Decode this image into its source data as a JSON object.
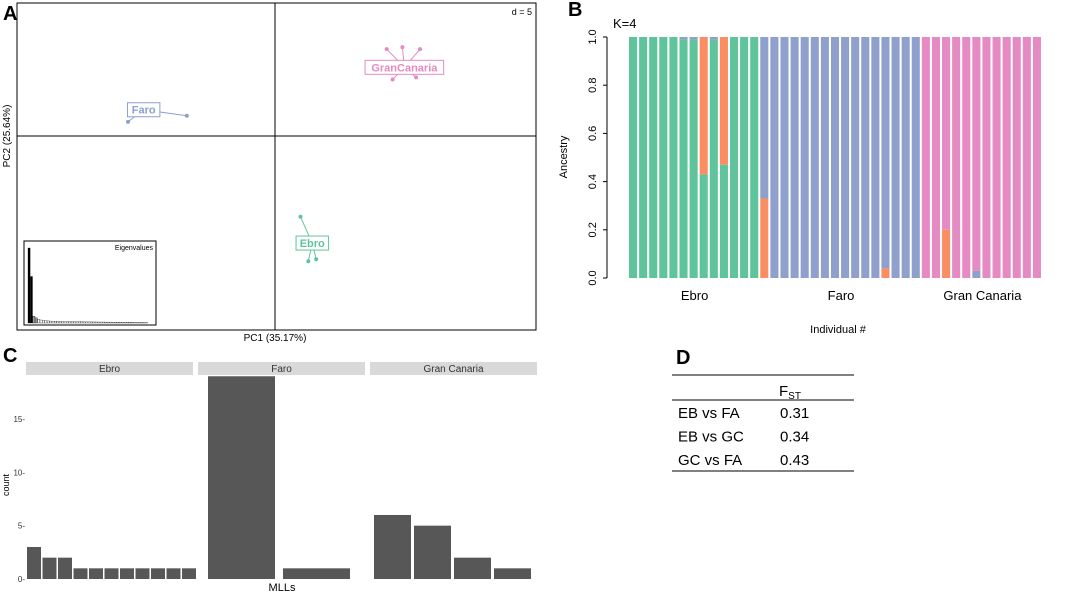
{
  "panels": {
    "a": "A",
    "b": "B",
    "c": "C",
    "d": "D"
  },
  "colors": {
    "ebro": "#5fc49b",
    "faro": "#8ea0cb",
    "gran_canaria": "#e58ac2",
    "orange": "#fb8d62",
    "dark_bar": "#575757",
    "strip": "#d9d9d9"
  },
  "chart_data": [
    {
      "id": "pca",
      "type": "scatter",
      "title": "",
      "xlabel": "PC1 (35.17%)",
      "ylabel": "PC2 (25.64%)",
      "scale_label": "d = 5",
      "grid": true,
      "groups": [
        {
          "name": "Faro",
          "color": "#8ea0cb",
          "centroid": [
            -6.7,
            1.3
          ],
          "points": [
            [
              -6.7,
              1.3
            ],
            [
              -4.5,
              1.0
            ],
            [
              -7.5,
              0.7
            ]
          ]
        },
        {
          "name": "GranCanaria",
          "color": "#e58ac2",
          "centroid": [
            6.6,
            3.4
          ],
          "points": [
            [
              6.6,
              3.4
            ],
            [
              5.7,
              4.3
            ],
            [
              7.4,
              4.3
            ],
            [
              6.0,
              2.8
            ],
            [
              7.2,
              2.9
            ],
            [
              6.5,
              4.4
            ]
          ]
        },
        {
          "name": "Ebro",
          "color": "#5fc49b",
          "centroid": [
            1.9,
            -5.3
          ],
          "points": [
            [
              1.9,
              -5.3
            ],
            [
              1.3,
              -4.0
            ],
            [
              2.1,
              -6.1
            ],
            [
              1.7,
              -6.2
            ]
          ]
        }
      ],
      "inset": {
        "title": "Eigenvalues",
        "values": [
          100,
          62,
          9,
          7,
          5,
          4,
          3.5,
          3,
          2.8,
          2.6,
          2.4,
          2.3,
          2.2,
          2.1,
          2.0,
          1.9,
          1.9,
          1.8,
          1.8,
          1.7,
          1.7,
          1.6,
          1.6,
          1.5,
          1.5,
          1.5,
          1.4,
          1.4,
          1.4,
          1.3,
          1.3,
          1.3,
          1.2,
          1.2,
          1.2,
          1.1,
          1.1,
          1.1,
          1.0,
          1.0,
          1.0,
          0.9,
          0.9,
          0.9,
          0.8,
          0.8,
          0.8,
          0.7,
          0.7,
          0.6
        ]
      }
    },
    {
      "id": "admixture",
      "type": "bar",
      "stacked": true,
      "annotation": "K=4",
      "xlabel": "Individual #",
      "ylabel": "Ancestry",
      "ylim": [
        0,
        1
      ],
      "yticks": [
        "0.0",
        "0.2",
        "0.4",
        "0.6",
        "0.8",
        "1.0"
      ],
      "component_colors": [
        "#5fc49b",
        "#fb8d62",
        "#8ea0cb",
        "#e58ac2"
      ],
      "groups": [
        {
          "label": "Ebro",
          "start": 0,
          "count": 13
        },
        {
          "label": "Faro",
          "start": 13,
          "count": 16
        },
        {
          "label": "Gran Canaria",
          "start": 29,
          "count": 12
        }
      ],
      "individuals": [
        [
          1,
          0,
          0,
          0
        ],
        [
          1,
          0,
          0,
          0
        ],
        [
          1,
          0,
          0,
          0
        ],
        [
          1,
          0,
          0,
          0
        ],
        [
          1,
          0,
          0,
          0
        ],
        [
          0.99,
          0,
          0.01,
          0
        ],
        [
          0.99,
          0,
          0.01,
          0
        ],
        [
          0.43,
          0.57,
          0,
          0
        ],
        [
          0.99,
          0,
          0.01,
          0
        ],
        [
          0.47,
          0.53,
          0,
          0
        ],
        [
          1,
          0,
          0,
          0
        ],
        [
          1,
          0,
          0,
          0
        ],
        [
          1,
          0,
          0,
          0
        ],
        [
          0,
          0.33,
          0.67,
          0
        ],
        [
          0,
          0,
          1,
          0
        ],
        [
          0,
          0,
          1,
          0
        ],
        [
          0,
          0,
          1,
          0
        ],
        [
          0,
          0,
          1,
          0
        ],
        [
          0,
          0,
          1,
          0
        ],
        [
          0,
          0,
          1,
          0
        ],
        [
          0,
          0,
          1,
          0
        ],
        [
          0,
          0,
          1,
          0
        ],
        [
          0,
          0,
          1,
          0
        ],
        [
          0,
          0,
          1,
          0
        ],
        [
          0,
          0,
          1,
          0
        ],
        [
          0,
          0.04,
          0.96,
          0
        ],
        [
          0,
          0,
          1,
          0
        ],
        [
          0,
          0,
          1,
          0
        ],
        [
          0,
          0,
          1,
          0
        ],
        [
          0,
          0,
          0,
          1
        ],
        [
          0,
          0,
          0,
          1
        ],
        [
          0,
          0.2,
          0,
          0.8
        ],
        [
          0,
          0,
          0,
          1
        ],
        [
          0,
          0,
          0,
          1
        ],
        [
          0,
          0,
          0.03,
          0.97
        ],
        [
          0,
          0,
          0,
          1
        ],
        [
          0,
          0,
          0,
          1
        ],
        [
          0,
          0,
          0,
          1
        ],
        [
          0,
          0,
          0,
          1
        ],
        [
          0,
          0,
          0,
          1
        ],
        [
          0,
          0,
          0,
          1
        ]
      ]
    },
    {
      "id": "mll_counts",
      "type": "bar",
      "xlabel": "MLLs",
      "ylabel": "count",
      "ylim": [
        0,
        18.9
      ],
      "yticks": [
        0,
        5,
        10,
        15
      ],
      "ytick_labels": [
        "0-",
        "5-",
        "10-",
        "15-"
      ],
      "facets": [
        {
          "label": "Ebro",
          "values": [
            3,
            2,
            2,
            1,
            1,
            1,
            1,
            1,
            1,
            1,
            1
          ]
        },
        {
          "label": "Faro",
          "values": [
            19,
            1
          ]
        },
        {
          "label": "Gran Canaria",
          "values": [
            6,
            5,
            2,
            1
          ]
        }
      ]
    },
    {
      "id": "fst",
      "type": "table",
      "header_main": "F",
      "header_sub": "ST",
      "rows": [
        {
          "pair": "EB vs FA",
          "value": "0.31"
        },
        {
          "pair": "EB vs GC",
          "value": "0.34"
        },
        {
          "pair": "GC vs FA",
          "value": "0.43"
        }
      ]
    }
  ]
}
